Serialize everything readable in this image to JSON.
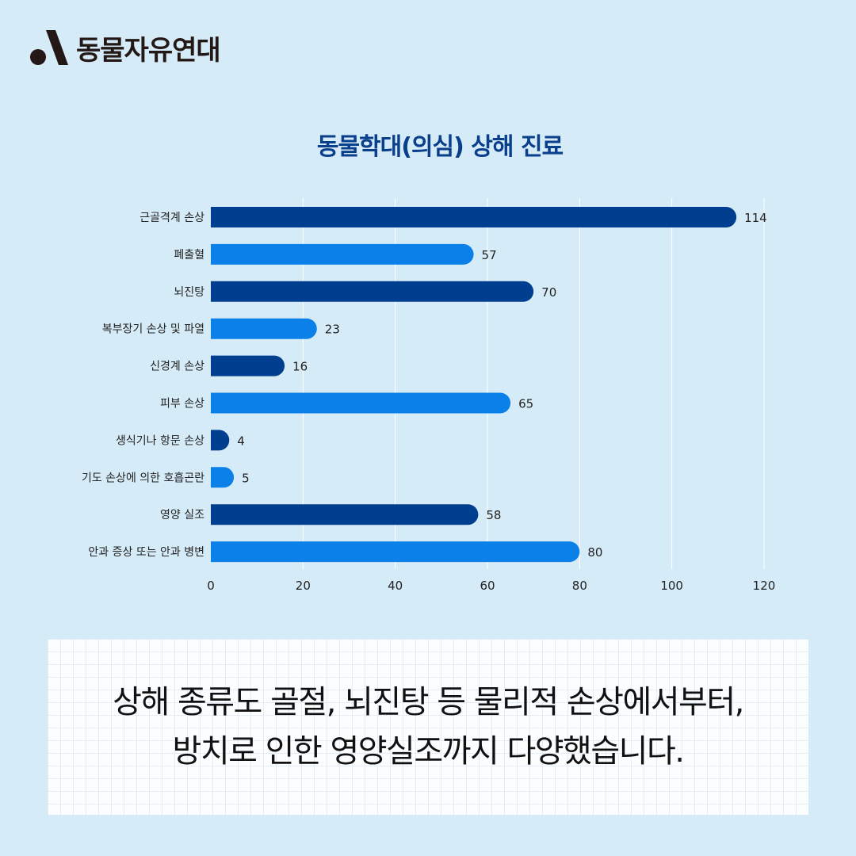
{
  "brand": {
    "name": "동물자유연대"
  },
  "colors": {
    "background": "#d6ebf8",
    "bar_dark": "#003f8f",
    "bar_light": "#0a80e8",
    "title": "#0a3f8c"
  },
  "chart_data": {
    "type": "bar",
    "orientation": "horizontal",
    "title": "동물학대(의심) 상해 진료",
    "categories": [
      "근골격계 손상",
      "폐출혈",
      "뇌진탕",
      "복부장기 손상 및 파열",
      "신경계 손상",
      "피부 손상",
      "생식기나 항문 손상",
      "기도 손상에 의한 호흡곤란",
      "영양 실조",
      "안과 증상 또는 안과 병변"
    ],
    "values": [
      114,
      57,
      70,
      23,
      16,
      65,
      4,
      5,
      58,
      80
    ],
    "xlim": [
      0,
      120
    ],
    "xticks": [
      0,
      20,
      40,
      60,
      80,
      100,
      120
    ],
    "grid": "vertical",
    "data_labels": true
  },
  "caption": {
    "line1": "상해 종류도 골절, 뇌진탕 등 물리적 손상에서부터,",
    "line2": "방치로 인한 영양실조까지 다양했습니다."
  }
}
